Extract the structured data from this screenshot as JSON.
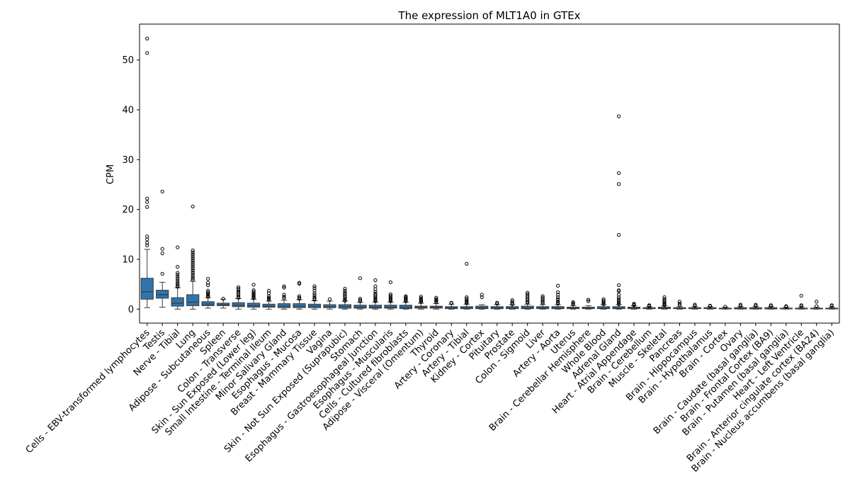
{
  "chart_data": {
    "type": "box",
    "title": "The expression of MLT1A0 in GTEx",
    "xlabel": "",
    "ylabel": "CPM",
    "ylim": [
      -2.8,
      57.2
    ],
    "yticks": [
      0,
      10,
      20,
      30,
      40,
      50
    ],
    "grid": false,
    "box_color": "#2f74ad",
    "categories": [
      "Cells - EBV-transformed lymphocytes",
      "Testis",
      "Nerve - Tibial",
      "Lung",
      "Adipose - Subcutaneous",
      "Spleen",
      "Colon - Transverse",
      "Skin - Sun Exposed (Lower leg)",
      "Small Intestine - Terminal Ileum",
      "Minor Salivary Gland",
      "Esophagus - Mucosa",
      "Breast - Mammary Tissue",
      "Vagina",
      "Skin - Not Sun Exposed (Suprapubic)",
      "Stomach",
      "Esophagus - Gastroesophageal Junction",
      "Esophagus - Muscularis",
      "Cells - Cultured fibroblasts",
      "Adipose - Visceral (Omentum)",
      "Thyroid",
      "Artery - Coronary",
      "Artery - Tibial",
      "Kidney - Cortex",
      "Pituitary",
      "Prostate",
      "Colon - Sigmoid",
      "Liver",
      "Artery - Aorta",
      "Uterus",
      "Brain - Cerebellar Hemisphere",
      "Whole Blood",
      "Adrenal Gland",
      "Heart - Atrial Appendage",
      "Brain - Cerebellum",
      "Muscle - Skeletal",
      "Pancreas",
      "Brain - Hippocampus",
      "Brain - Hypothalamus",
      "Brain - Cortex",
      "Ovary",
      "Brain - Caudate (basal ganglia)",
      "Brain - Frontal Cortex (BA9)",
      "Brain - Putamen (basal ganglia)",
      "Heart - Left Ventricle",
      "Brain - Anterior cingulate cortex (BA24)",
      "Brain - Nucleus accumbens (basal ganglia)"
    ],
    "boxes": [
      {
        "q1": 2.0,
        "median": 3.5,
        "q3": 6.2,
        "whislo": 0.3,
        "whishi": 12.0,
        "fliers": [
          54.3,
          51.4,
          22.2,
          21.5,
          20.5,
          14.6,
          14.0,
          13.3,
          12.8
        ]
      },
      {
        "q1": 2.2,
        "median": 2.9,
        "q3": 3.8,
        "whislo": 0.4,
        "whishi": 5.4,
        "fliers": [
          23.6,
          12.1,
          11.2,
          7.1
        ]
      },
      {
        "q1": 0.6,
        "median": 1.2,
        "q3": 2.3,
        "whislo": 0.0,
        "whishi": 4.3,
        "fliers": [
          12.4,
          8.5,
          7.3,
          6.9,
          6.5,
          6.1,
          5.7,
          5.3,
          5.0,
          4.7,
          4.5
        ]
      },
      {
        "q1": 0.7,
        "median": 1.4,
        "q3": 2.9,
        "whislo": 0.0,
        "whishi": 5.6,
        "fliers": [
          20.6,
          11.8,
          11.4,
          11.0,
          10.6,
          10.2,
          9.8,
          9.4,
          9.0,
          8.6,
          8.2,
          7.8,
          7.4,
          7.0,
          6.6,
          6.2,
          5.9
        ]
      },
      {
        "q1": 0.7,
        "median": 1.0,
        "q3": 1.5,
        "whislo": 0.2,
        "whishi": 2.3,
        "fliers": [
          6.1,
          5.3,
          4.8,
          3.7,
          3.4,
          3.1,
          2.9,
          2.7,
          2.5
        ]
      },
      {
        "q1": 0.7,
        "median": 0.9,
        "q3": 1.2,
        "whislo": 0.2,
        "whishi": 2.0,
        "fliers": [
          2.1
        ]
      },
      {
        "q1": 0.5,
        "median": 0.8,
        "q3": 1.3,
        "whislo": 0.0,
        "whishi": 2.1,
        "fliers": [
          4.4,
          4.1,
          3.8,
          3.4,
          3.1,
          2.8,
          2.5,
          2.3
        ]
      },
      {
        "q1": 0.4,
        "median": 0.7,
        "q3": 1.2,
        "whislo": 0.0,
        "whishi": 2.0,
        "fliers": [
          4.9,
          3.8,
          3.5,
          3.2,
          3.0,
          2.8,
          2.6,
          2.4,
          2.2
        ]
      },
      {
        "q1": 0.4,
        "median": 0.6,
        "q3": 1.0,
        "whislo": 0.0,
        "whishi": 1.6,
        "fliers": [
          3.7,
          3.2,
          2.6,
          2.3,
          2.1,
          1.9
        ]
      },
      {
        "q1": 0.3,
        "median": 0.6,
        "q3": 1.1,
        "whislo": 0.0,
        "whishi": 1.8,
        "fliers": [
          4.6,
          4.3,
          2.9,
          2.5,
          2.2
        ]
      },
      {
        "q1": 0.3,
        "median": 0.6,
        "q3": 1.1,
        "whislo": 0.0,
        "whishi": 1.9,
        "fliers": [
          5.3,
          5.1,
          2.6,
          2.3,
          2.1
        ]
      },
      {
        "q1": 0.3,
        "median": 0.6,
        "q3": 1.0,
        "whislo": 0.0,
        "whishi": 1.7,
        "fliers": [
          4.6,
          4.2,
          3.7,
          3.2,
          2.8,
          2.4,
          2.1,
          1.9
        ]
      },
      {
        "q1": 0.3,
        "median": 0.5,
        "q3": 0.9,
        "whislo": 0.0,
        "whishi": 1.6,
        "fliers": [
          2.0
        ]
      },
      {
        "q1": 0.2,
        "median": 0.5,
        "q3": 0.9,
        "whislo": 0.0,
        "whishi": 1.6,
        "fliers": [
          4.1,
          3.7,
          3.3,
          3.0,
          2.7,
          2.4,
          2.1,
          1.9,
          1.7
        ]
      },
      {
        "q1": 0.2,
        "median": 0.4,
        "q3": 0.8,
        "whislo": 0.0,
        "whishi": 1.4,
        "fliers": [
          6.2,
          2.1,
          1.8,
          1.6
        ]
      },
      {
        "q1": 0.2,
        "median": 0.4,
        "q3": 0.8,
        "whislo": 0.0,
        "whishi": 1.4,
        "fliers": [
          5.8,
          4.6,
          4.0,
          3.5,
          3.1,
          2.8,
          2.5,
          2.2,
          2.0,
          1.8,
          1.6
        ]
      },
      {
        "q1": 0.2,
        "median": 0.4,
        "q3": 0.8,
        "whislo": 0.0,
        "whishi": 1.4,
        "fliers": [
          5.4,
          3.0,
          2.7,
          2.4,
          2.2,
          2.0,
          1.8,
          1.6
        ]
      },
      {
        "q1": 0.1,
        "median": 0.4,
        "q3": 0.8,
        "whislo": 0.0,
        "whishi": 1.4,
        "fliers": [
          2.6,
          2.4,
          2.2,
          2.0,
          1.8,
          1.6
        ]
      },
      {
        "q1": 0.2,
        "median": 0.4,
        "q3": 0.6,
        "whislo": 0.0,
        "whishi": 1.2,
        "fliers": [
          2.5,
          2.2,
          2.0,
          1.8,
          1.6,
          1.4
        ]
      },
      {
        "q1": 0.2,
        "median": 0.4,
        "q3": 0.6,
        "whislo": 0.0,
        "whishi": 1.1,
        "fliers": [
          2.3,
          2.0,
          1.8,
          1.6,
          1.4
        ]
      },
      {
        "q1": 0.1,
        "median": 0.3,
        "q3": 0.5,
        "whislo": 0.0,
        "whishi": 1.0,
        "fliers": [
          1.3,
          1.2
        ]
      },
      {
        "q1": 0.1,
        "median": 0.3,
        "q3": 0.5,
        "whislo": 0.0,
        "whishi": 1.0,
        "fliers": [
          9.1,
          2.4,
          2.1,
          1.8,
          1.6,
          1.4,
          1.2
        ]
      },
      {
        "q1": 0.1,
        "median": 0.3,
        "q3": 0.6,
        "whislo": 0.0,
        "whishi": 0.9,
        "fliers": [
          2.9,
          2.4
        ]
      },
      {
        "q1": 0.1,
        "median": 0.3,
        "q3": 0.5,
        "whislo": 0.0,
        "whishi": 0.9,
        "fliers": [
          1.3,
          1.1
        ]
      },
      {
        "q1": 0.1,
        "median": 0.3,
        "q3": 0.5,
        "whislo": 0.0,
        "whishi": 0.9,
        "fliers": [
          1.8,
          1.5,
          1.2,
          1.0
        ]
      },
      {
        "q1": 0.1,
        "median": 0.3,
        "q3": 0.6,
        "whislo": 0.0,
        "whishi": 1.0,
        "fliers": [
          3.3,
          3.0,
          2.7,
          2.4,
          2.1,
          1.8,
          1.5,
          1.3
        ]
      },
      {
        "q1": 0.1,
        "median": 0.3,
        "q3": 0.5,
        "whislo": 0.0,
        "whishi": 0.9,
        "fliers": [
          2.6,
          2.3,
          2.0,
          1.7,
          1.4,
          1.2
        ]
      },
      {
        "q1": 0.1,
        "median": 0.3,
        "q3": 0.5,
        "whislo": 0.0,
        "whishi": 0.9,
        "fliers": [
          4.7,
          3.4,
          2.9,
          2.4,
          2.0,
          1.6,
          1.3,
          1.1
        ]
      },
      {
        "q1": 0.1,
        "median": 0.2,
        "q3": 0.4,
        "whislo": 0.0,
        "whishi": 0.7,
        "fliers": [
          1.4,
          1.2,
          1.0
        ]
      },
      {
        "q1": 0.1,
        "median": 0.2,
        "q3": 0.4,
        "whislo": 0.0,
        "whishi": 0.7,
        "fliers": [
          1.9,
          1.6
        ]
      },
      {
        "q1": 0.1,
        "median": 0.2,
        "q3": 0.5,
        "whislo": 0.0,
        "whishi": 0.9,
        "fliers": [
          2.0,
          1.7,
          1.4,
          1.2,
          1.0
        ]
      },
      {
        "q1": 0.1,
        "median": 0.2,
        "q3": 0.5,
        "whislo": 0.0,
        "whishi": 0.9,
        "fliers": [
          38.7,
          27.3,
          25.1,
          14.9,
          4.8,
          3.8,
          3.6,
          2.9,
          2.4,
          2.0,
          1.7,
          1.4,
          1.2,
          1.0
        ]
      },
      {
        "q1": 0.1,
        "median": 0.2,
        "q3": 0.4,
        "whislo": 0.0,
        "whishi": 0.7,
        "fliers": [
          1.1,
          0.9,
          0.8
        ]
      },
      {
        "q1": 0.1,
        "median": 0.2,
        "q3": 0.3,
        "whislo": 0.0,
        "whishi": 0.5,
        "fliers": [
          0.8,
          0.7,
          0.6
        ]
      },
      {
        "q1": 0.1,
        "median": 0.2,
        "q3": 0.4,
        "whislo": 0.0,
        "whishi": 0.7,
        "fliers": [
          2.4,
          2.0,
          1.7,
          1.4,
          1.2,
          1.0,
          0.8
        ]
      },
      {
        "q1": 0.1,
        "median": 0.2,
        "q3": 0.3,
        "whislo": 0.0,
        "whishi": 0.5,
        "fliers": [
          1.5,
          1.1,
          0.8
        ]
      },
      {
        "q1": 0.1,
        "median": 0.2,
        "q3": 0.3,
        "whislo": 0.0,
        "whishi": 0.5,
        "fliers": [
          0.9,
          0.7
        ]
      },
      {
        "q1": 0.1,
        "median": 0.15,
        "q3": 0.3,
        "whislo": 0.0,
        "whishi": 0.5,
        "fliers": [
          0.7,
          0.6
        ]
      },
      {
        "q1": 0.05,
        "median": 0.1,
        "q3": 0.2,
        "whislo": 0.0,
        "whishi": 0.4,
        "fliers": [
          0.5
        ]
      },
      {
        "q1": 0.05,
        "median": 0.15,
        "q3": 0.3,
        "whislo": 0.0,
        "whishi": 0.5,
        "fliers": [
          0.9,
          0.7
        ]
      },
      {
        "q1": 0.05,
        "median": 0.1,
        "q3": 0.3,
        "whislo": 0.0,
        "whishi": 0.5,
        "fliers": [
          0.9,
          0.7
        ]
      },
      {
        "q1": 0.05,
        "median": 0.1,
        "q3": 0.3,
        "whislo": 0.0,
        "whishi": 0.5,
        "fliers": [
          0.8,
          0.6
        ]
      },
      {
        "q1": 0.05,
        "median": 0.1,
        "q3": 0.2,
        "whislo": 0.0,
        "whishi": 0.4,
        "fliers": [
          0.6,
          0.5
        ]
      },
      {
        "q1": 0.05,
        "median": 0.1,
        "q3": 0.2,
        "whislo": 0.0,
        "whishi": 0.4,
        "fliers": [
          2.7,
          0.8,
          0.6
        ]
      },
      {
        "q1": 0.05,
        "median": 0.1,
        "q3": 0.2,
        "whislo": 0.0,
        "whishi": 0.4,
        "fliers": [
          1.5,
          0.6
        ]
      },
      {
        "q1": 0.05,
        "median": 0.1,
        "q3": 0.2,
        "whislo": 0.0,
        "whishi": 0.4,
        "fliers": [
          0.8,
          0.6
        ]
      }
    ]
  }
}
